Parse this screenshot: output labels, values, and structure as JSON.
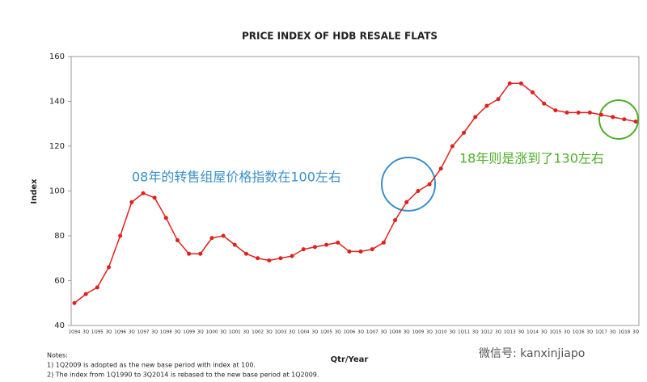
{
  "chart_data": {
    "type": "line",
    "title": "PRICE INDEX OF HDB RESALE FLATS",
    "x_label": "Qtr/Year",
    "y_label": "Index",
    "categories": [
      "1Q94",
      "3Q",
      "1Q95",
      "3Q",
      "1Q96",
      "3Q",
      "1Q97",
      "3Q",
      "1Q98",
      "3Q",
      "1Q99",
      "3Q",
      "1Q00",
      "3Q",
      "1Q01",
      "3Q",
      "1Q02",
      "3Q",
      "1Q03",
      "3Q",
      "1Q04",
      "3Q",
      "1Q05",
      "3Q",
      "1Q06",
      "3Q",
      "1Q07",
      "3Q",
      "1Q08",
      "3Q",
      "1Q09",
      "3Q",
      "1Q10",
      "3Q",
      "1Q11",
      "3Q",
      "1Q12",
      "3Q",
      "1Q13",
      "3Q",
      "1Q14",
      "3Q",
      "1Q15",
      "3Q",
      "1Q16",
      "3Q",
      "1Q17",
      "3Q",
      "1Q18",
      "3Q"
    ],
    "values": [
      50,
      54,
      57,
      66,
      80,
      95,
      99,
      97,
      88,
      78,
      72,
      72,
      79,
      80,
      76,
      72,
      70,
      69,
      70,
      71,
      74,
      75,
      76,
      77,
      73,
      73,
      74,
      77,
      87,
      95,
      100,
      103,
      110,
      120,
      126,
      133,
      138,
      141,
      148,
      148,
      144,
      139,
      136,
      135,
      135,
      135,
      134,
      133,
      132,
      131
    ],
    "color": "#e0201c",
    "ylim": [
      40,
      160
    ],
    "yticks": [
      40,
      60,
      80,
      100,
      120,
      140,
      160
    ],
    "annotations": [
      "08年的转售组屋价格指数在100左右",
      "18年则是涨到了130左右"
    ],
    "notes": [
      "Notes:",
      "1) 1Q2009 is adopted as the new base period with index at 100.",
      "2) The index from 1Q1990 to 3Q2014 is rebased to the new base  period at 1Q2009."
    ]
  },
  "watermark": "微信号: kanxinjiapo"
}
